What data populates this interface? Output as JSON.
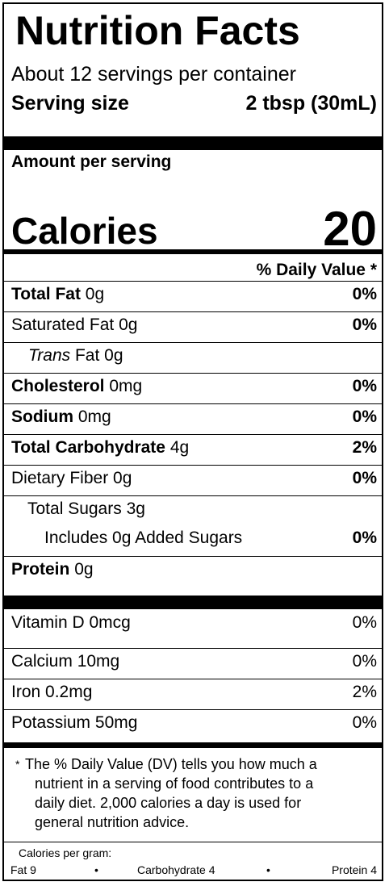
{
  "title": "Nutrition Facts",
  "servings_per_container": "About 12 servings per container",
  "serving_size_label": "Serving size",
  "serving_size_value": "2 tbsp (30mL)",
  "amount_per_serving": "Amount per serving",
  "calories_label": "Calories",
  "calories_value": "20",
  "daily_value_header": "% Daily Value *",
  "nutrients": [
    {
      "name": "Total Fat",
      "amount": "0g",
      "dv": "0%"
    },
    {
      "name": "Saturated Fat",
      "amount": "0g",
      "dv": "0%"
    },
    {
      "name": "Trans",
      "amount": "Fat 0g",
      "dv": ""
    },
    {
      "name": "Cholesterol",
      "amount": "0mg",
      "dv": "0%"
    },
    {
      "name": "Sodium",
      "amount": "0mg",
      "dv": "0%"
    },
    {
      "name": "Total Carbohydrate",
      "amount": "4g",
      "dv": "2%"
    },
    {
      "name": "Dietary Fiber",
      "amount": "0g",
      "dv": "0%"
    },
    {
      "name": "Total Sugars",
      "amount": "3g",
      "dv": ""
    },
    {
      "name": "Includes 0g Added Sugars",
      "amount": "",
      "dv": "0%"
    },
    {
      "name": "Protein",
      "amount": "0g",
      "dv": ""
    }
  ],
  "vitamins": [
    {
      "name": "Vitamin D",
      "amount": "0mcg",
      "dv": "0%"
    },
    {
      "name": "Calcium",
      "amount": "10mg",
      "dv": "0%"
    },
    {
      "name": "Iron",
      "amount": "0.2mg",
      "dv": "2%"
    },
    {
      "name": "Potassium",
      "amount": "50mg",
      "dv": "0%"
    }
  ],
  "footnote": {
    "star": "*",
    "line1": "The % Daily Value (DV) tells you how much a",
    "line2": "nutrient in a serving of food contributes to a",
    "line3": "daily diet. 2,000 calories a day is used for",
    "line4": "general nutrition advice."
  },
  "calories_per_gram": {
    "label": "Calories per gram:",
    "fat": "Fat 9",
    "bullet": "•",
    "carbohydrate": "Carbohydrate 4",
    "protein": "Protein 4"
  }
}
